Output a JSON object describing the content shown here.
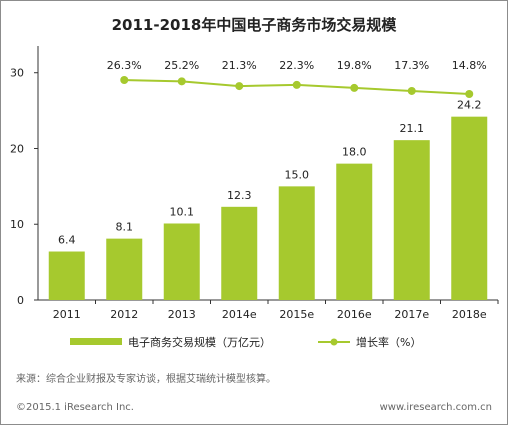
{
  "chart_data": {
    "type": "bar",
    "title": "2011-2018年中国电子商务市场交易规模",
    "categories": [
      "2011",
      "2012",
      "2013",
      "2014e",
      "2015e",
      "2016e",
      "2017e",
      "2018e"
    ],
    "series": [
      {
        "name": "电子商务交易规模（万亿元）",
        "type": "bar",
        "values": [
          6.4,
          8.1,
          10.1,
          12.3,
          15.0,
          18.0,
          21.1,
          24.2
        ],
        "labels": [
          "6.4",
          "8.1",
          "10.1",
          "12.3",
          "15.0",
          "18.0",
          "21.1",
          "24.2"
        ]
      },
      {
        "name": "增长率（%）",
        "type": "line",
        "values": [
          null,
          26.3,
          25.2,
          21.3,
          22.3,
          19.8,
          17.3,
          14.8
        ],
        "labels": [
          "",
          "26.3%",
          "25.2%",
          "21.3%",
          "22.3%",
          "19.8%",
          "17.3%",
          "14.8%"
        ]
      }
    ],
    "yticks": [
      "0",
      "10",
      "20",
      "30"
    ],
    "ylim": [
      0,
      33
    ],
    "line_y_offset_units": 0,
    "bar_color": "#a6c92e",
    "line_color": "#a6c92e",
    "grid": false,
    "legend": "bottom",
    "source": "来源：综合企业财报及专家访谈，根据艾瑞统计模型核算。"
  },
  "footer": {
    "copyright": "©2015.1 iResearch Inc.",
    "website": "www.iresearch.com.cn"
  }
}
